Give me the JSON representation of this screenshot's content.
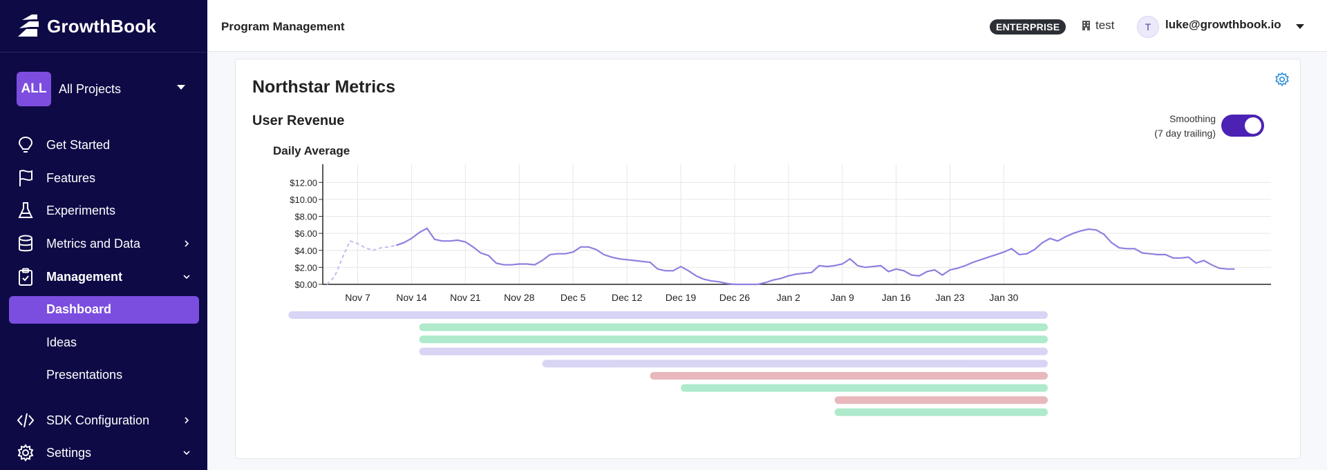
{
  "app": {
    "name": "GrowthBook"
  },
  "project": {
    "badge": "ALL",
    "label": "All Projects"
  },
  "nav": {
    "items": [
      {
        "label": "Get Started",
        "icon": "lightbulb-icon"
      },
      {
        "label": "Features",
        "icon": "flag-icon"
      },
      {
        "label": "Experiments",
        "icon": "flask-icon"
      },
      {
        "label": "Metrics and Data",
        "icon": "database-icon",
        "expandable": true
      },
      {
        "label": "Management",
        "icon": "clipboard-icon",
        "expanded": true
      },
      {
        "label": "SDK Configuration",
        "icon": "code-icon",
        "expandable": true
      },
      {
        "label": "Settings",
        "icon": "gear-icon",
        "expanded": true
      }
    ],
    "management_sub": [
      {
        "label": "Dashboard",
        "active": true
      },
      {
        "label": "Ideas"
      },
      {
        "label": "Presentations"
      }
    ]
  },
  "topbar": {
    "title": "Program Management",
    "plan_badge": "ENTERPRISE",
    "org": "test",
    "avatar_initial": "T",
    "user": "luke@growthbook.io"
  },
  "card": {
    "title": "Northstar Metrics",
    "metric_title": "User Revenue",
    "smoothing_line1": "Smoothing",
    "smoothing_line2": "(7 day trailing)",
    "smoothing_on": true,
    "chart_title": "Daily Average"
  },
  "colors": {
    "sidebar_bg": "#0e0a46",
    "accent": "#7b4ee0",
    "line": "#8c7fe0",
    "bar_purple": "#d8d4f4",
    "bar_green": "#aeeacb",
    "bar_red": "#e8b8bc"
  },
  "chart_data": {
    "type": "line",
    "title": "Daily Average",
    "ylabel": "",
    "xlabel": "",
    "ylim": [
      0,
      13
    ],
    "yticks": [
      "$0.00",
      "$2.00",
      "$4.00",
      "$6.00",
      "$8.00",
      "$10.00",
      "$12.00"
    ],
    "x_ticks": [
      "Nov 7",
      "Nov 14",
      "Nov 21",
      "Nov 28",
      "Dec 5",
      "Dec 12",
      "Dec 19",
      "Dec 26",
      "Jan 2",
      "Jan 9",
      "Jan 16",
      "Jan 23",
      "Jan 30"
    ],
    "grid": true,
    "series": [
      {
        "smoothing": "7 day trailing",
        "dashed_until_day": 9,
        "values": [
          0.0,
          0.9,
          3.1,
          5.1,
          4.8,
          4.3,
          4.0,
          4.3,
          4.4,
          4.6,
          4.9,
          5.4,
          6.1,
          6.6,
          5.3,
          5.1,
          5.1,
          5.2,
          5.0,
          4.4,
          3.7,
          3.4,
          2.5,
          2.3,
          2.3,
          2.4,
          2.4,
          2.3,
          2.8,
          3.5,
          3.6,
          3.6,
          3.8,
          4.4,
          4.4,
          4.1,
          3.5,
          3.2,
          3.0,
          2.9,
          2.8,
          2.7,
          2.6,
          1.8,
          1.6,
          1.6,
          2.1,
          1.6,
          1.0,
          0.6,
          0.4,
          0.3,
          0.1,
          0.0,
          0.0,
          0.0,
          0.0,
          0.2,
          0.5,
          0.7,
          1.0,
          1.2,
          1.3,
          1.4,
          2.2,
          2.1,
          2.2,
          2.4,
          3.0,
          2.2,
          2.0,
          2.1,
          2.2,
          1.5,
          1.8,
          1.6,
          1.1,
          1.0,
          1.5,
          1.7,
          1.1,
          1.7,
          1.9,
          2.2,
          2.6,
          2.9,
          3.2,
          3.5,
          3.8,
          4.2,
          3.5,
          3.6,
          4.1,
          4.9,
          5.4,
          5.1,
          5.6,
          6.0,
          6.3,
          6.5,
          6.4,
          5.9,
          4.9,
          4.3,
          4.2,
          4.2,
          3.7,
          3.6,
          3.5,
          3.5,
          3.1,
          3.1,
          3.2,
          2.5,
          2.8,
          2.3,
          1.9,
          1.8,
          1.8
        ]
      }
    ],
    "x_start": "Nov 3",
    "timeline_bars": [
      {
        "color": "purple",
        "start_day": -5
      },
      {
        "color": "green",
        "start_day": 12
      },
      {
        "color": "green",
        "start_day": 12
      },
      {
        "color": "purple",
        "start_day": 12
      },
      {
        "color": "purple",
        "start_day": 28
      },
      {
        "color": "red",
        "start_day": 42
      },
      {
        "color": "green",
        "start_day": 46
      },
      {
        "color": "red",
        "start_day": 66
      },
      {
        "color": "green",
        "start_day": 66
      }
    ]
  }
}
